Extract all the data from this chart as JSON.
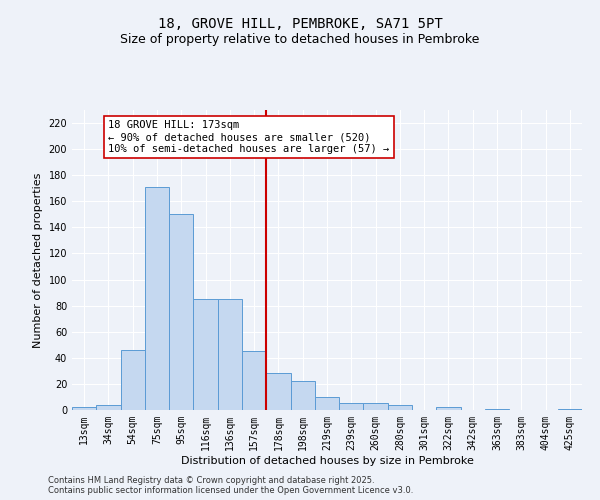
{
  "title": "18, GROVE HILL, PEMBROKE, SA71 5PT",
  "subtitle": "Size of property relative to detached houses in Pembroke",
  "xlabel": "Distribution of detached houses by size in Pembroke",
  "ylabel": "Number of detached properties",
  "categories": [
    "13sqm",
    "34sqm",
    "54sqm",
    "75sqm",
    "95sqm",
    "116sqm",
    "136sqm",
    "157sqm",
    "178sqm",
    "198sqm",
    "219sqm",
    "239sqm",
    "260sqm",
    "280sqm",
    "301sqm",
    "322sqm",
    "342sqm",
    "363sqm",
    "383sqm",
    "404sqm",
    "425sqm"
  ],
  "values": [
    2,
    4,
    46,
    171,
    150,
    85,
    85,
    45,
    28,
    22,
    10,
    5,
    5,
    4,
    0,
    2,
    0,
    1,
    0,
    0,
    1
  ],
  "bar_color": "#c5d8f0",
  "bar_edge_color": "#5b9bd5",
  "vline_x": 8,
  "vline_color": "#cc0000",
  "annotation_text": "18 GROVE HILL: 173sqm\n← 90% of detached houses are smaller (520)\n10% of semi-detached houses are larger (57) →",
  "annotation_box_color": "#ffffff",
  "annotation_box_edge": "#cc0000",
  "ylim": [
    0,
    230
  ],
  "yticks": [
    0,
    20,
    40,
    60,
    80,
    100,
    120,
    140,
    160,
    180,
    200,
    220
  ],
  "background_color": "#eef2f9",
  "footer": "Contains HM Land Registry data © Crown copyright and database right 2025.\nContains public sector information licensed under the Open Government Licence v3.0.",
  "title_fontsize": 10,
  "subtitle_fontsize": 9,
  "axis_label_fontsize": 8,
  "tick_fontsize": 7,
  "annotation_fontsize": 7.5,
  "footer_fontsize": 6
}
